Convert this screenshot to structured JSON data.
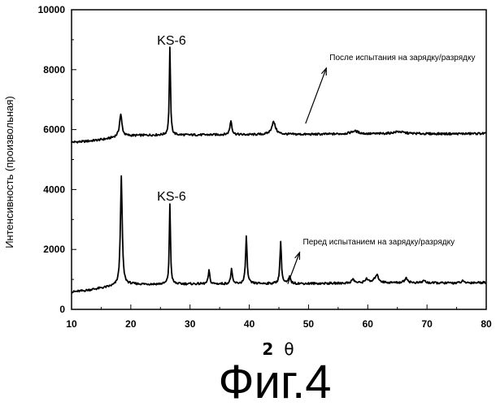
{
  "chart_data": {
    "type": "line",
    "xlabel_prefix": "2",
    "xlabel_symbol": "θ",
    "ylabel": "Интенсивность (произвольная)",
    "xlim": [
      10,
      80
    ],
    "ylim": [
      0,
      10000
    ],
    "x_ticks": [
      10,
      20,
      30,
      40,
      50,
      60,
      70,
      80
    ],
    "y_ticks": [
      0,
      2000,
      4000,
      6000,
      8000,
      10000
    ],
    "grid": false,
    "legend": "none",
    "series": [
      {
        "baseline": [
          [
            10,
            5580
          ],
          [
            12,
            5600
          ],
          [
            14,
            5640
          ],
          [
            16,
            5690
          ],
          [
            17.5,
            5750
          ],
          [
            19.5,
            5790
          ],
          [
            22,
            5810
          ],
          [
            25,
            5820
          ],
          [
            30,
            5820
          ],
          [
            35,
            5830
          ],
          [
            40,
            5830
          ],
          [
            45,
            5840
          ],
          [
            50,
            5840
          ],
          [
            55,
            5850
          ],
          [
            60,
            5850
          ],
          [
            65,
            5870
          ],
          [
            70,
            5860
          ],
          [
            75,
            5860
          ],
          [
            80,
            5870
          ]
        ],
        "peaks": [
          {
            "x": 18.3,
            "y": 6500,
            "w": 0.25
          },
          {
            "x": 26.6,
            "y": 8720,
            "w": 0.12
          },
          {
            "x": 36.9,
            "y": 6300,
            "w": 0.2
          },
          {
            "x": 44.1,
            "y": 6250,
            "w": 0.4
          },
          {
            "x": 57.8,
            "y": 5950,
            "w": 0.8
          },
          {
            "x": 65.2,
            "y": 5930,
            "w": 1.0
          }
        ]
      },
      {
        "baseline": [
          [
            10,
            580
          ],
          [
            12,
            620
          ],
          [
            14,
            680
          ],
          [
            16,
            740
          ],
          [
            17.5,
            790
          ],
          [
            19.5,
            840
          ],
          [
            22,
            840
          ],
          [
            25,
            840
          ],
          [
            30,
            850
          ],
          [
            35,
            850
          ],
          [
            40,
            860
          ],
          [
            45,
            860
          ],
          [
            50,
            860
          ],
          [
            55,
            870
          ],
          [
            60,
            880
          ],
          [
            65,
            890
          ],
          [
            70,
            880
          ],
          [
            75,
            880
          ],
          [
            80,
            900
          ]
        ],
        "peaks": [
          {
            "x": 18.4,
            "y": 4420,
            "w": 0.18
          },
          {
            "x": 26.6,
            "y": 3520,
            "w": 0.12
          },
          {
            "x": 33.2,
            "y": 1300,
            "w": 0.15
          },
          {
            "x": 37.0,
            "y": 1350,
            "w": 0.15
          },
          {
            "x": 39.5,
            "y": 2420,
            "w": 0.15
          },
          {
            "x": 45.3,
            "y": 2270,
            "w": 0.15
          },
          {
            "x": 46.8,
            "y": 1080,
            "w": 0.2
          },
          {
            "x": 57.5,
            "y": 1000,
            "w": 0.3
          },
          {
            "x": 59.8,
            "y": 1020,
            "w": 0.3
          },
          {
            "x": 61.5,
            "y": 1150,
            "w": 0.4
          },
          {
            "x": 66.5,
            "y": 1050,
            "w": 0.3
          },
          {
            "x": 69.5,
            "y": 960,
            "w": 0.3
          },
          {
            "x": 76.0,
            "y": 940,
            "w": 0.3
          }
        ]
      }
    ],
    "peak_labels": [
      {
        "text": "KS-6",
        "x": 26.6,
        "y": 8720
      },
      {
        "text": "KS-6",
        "x": 26.6,
        "y": 3520
      }
    ],
    "annotations": [
      {
        "text": "После испытания на зарядку/разрядку",
        "arrow_from": [
          53.0,
          8050
        ],
        "arrow_to": [
          49.5,
          6200
        ]
      },
      {
        "text": "Перед испытанием на зарядку/разрядку",
        "arrow_from": [
          48.5,
          1900
        ],
        "arrow_to": [
          46.5,
          850
        ]
      }
    ]
  },
  "caption": "Фиг.4"
}
